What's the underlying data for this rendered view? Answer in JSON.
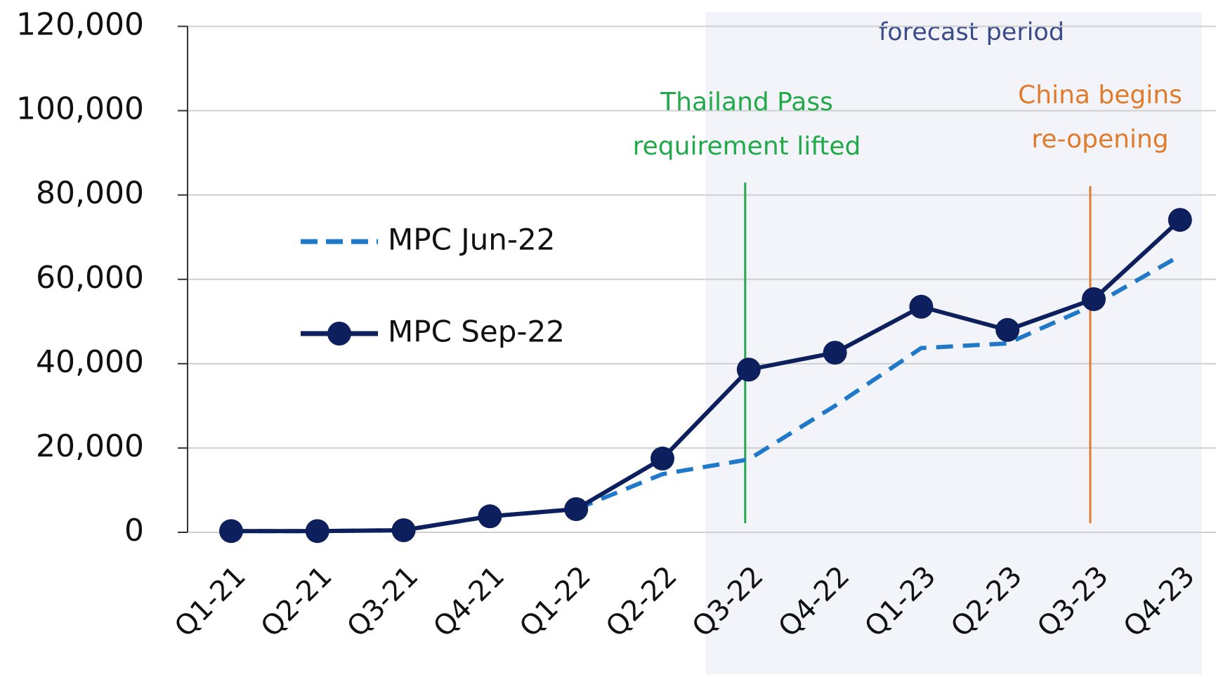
{
  "chart_data": {
    "type": "line",
    "categories": [
      "Q1-21",
      "Q2-21",
      "Q3-21",
      "Q4-21",
      "Q1-22",
      "Q2-22",
      "Q3-22",
      "Q4-22",
      "Q1-23",
      "Q2-23",
      "Q3-23",
      "Q4-23"
    ],
    "series": [
      {
        "name": "MPC Jun-22",
        "color": "#1f78c8",
        "dashed": true,
        "markers": false,
        "values": [
          300,
          300,
          500,
          3800,
          5500,
          13800,
          17300,
          30000,
          43700,
          44800,
          53900,
          65600
        ]
      },
      {
        "name": "MPC Sep-22",
        "color": "#0d1f5c",
        "dashed": false,
        "markers": true,
        "values": [
          300,
          300,
          500,
          3800,
          5500,
          17500,
          38600,
          42600,
          53500,
          48000,
          55300,
          74100
        ]
      }
    ],
    "ylim": [
      0,
      120000
    ],
    "yticks": [
      0,
      {
        "value": 20000,
        "label": "20,000"
      },
      {
        "value": 40000,
        "label": "40,000"
      },
      {
        "value": 60000,
        "label": "60,000"
      },
      {
        "value": 80000,
        "label": "80,000"
      },
      {
        "value": 100000,
        "label": "100,000"
      },
      {
        "value": 120000,
        "label": "120,000"
      }
    ],
    "grid": true,
    "shaded_region": {
      "label": "forecast period",
      "color": "#f2f4f9"
    },
    "annotations": [
      {
        "x": "Q3-22",
        "text": [
          "Thailand Pass",
          "requirement lifted"
        ],
        "color": "#21a94a"
      },
      {
        "x": "Q3-23",
        "text": [
          "China begins",
          "re-opening"
        ],
        "color": "#e07b2c"
      }
    ]
  }
}
